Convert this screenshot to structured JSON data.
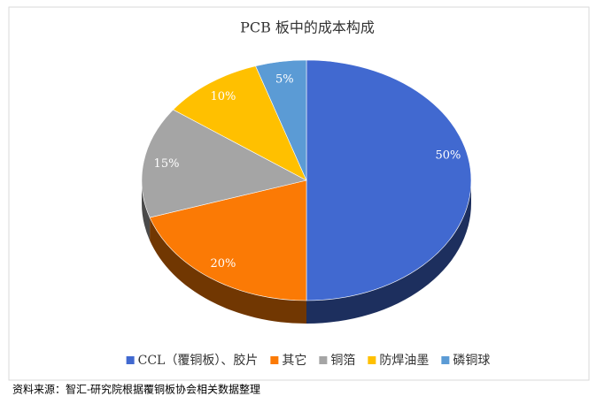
{
  "chart_data": {
    "type": "pie",
    "title": "PCB 板中的成本构成",
    "categories": [
      "CCL（覆铜板）、胶片",
      "其它",
      "铜箔",
      "防焊油墨",
      "磷铜球"
    ],
    "values": [
      50,
      20,
      15,
      10,
      5
    ],
    "value_labels": [
      "50%",
      "20%",
      "15%",
      "10%",
      "5%"
    ],
    "colors": [
      "#4169d0",
      "#fb7a05",
      "#a5a5a5",
      "#ffc000",
      "#5b9bd5"
    ],
    "legend": "bottom",
    "source": "资料来源：智汇-研究院根据覆铜板协会相关数据整理"
  }
}
